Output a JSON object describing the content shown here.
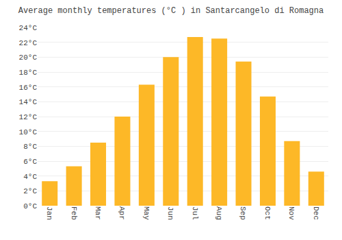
{
  "chart_data": {
    "type": "bar",
    "title": "Average monthly temperatures (°C ) in Santarcangelo di Romagna",
    "categories": [
      "Jan",
      "Feb",
      "Mar",
      "Apr",
      "May",
      "Jun",
      "Jul",
      "Aug",
      "Sep",
      "Oct",
      "Nov",
      "Dec"
    ],
    "values": [
      3.3,
      5.3,
      8.5,
      12.0,
      16.3,
      20.0,
      22.7,
      22.5,
      19.4,
      14.7,
      8.7,
      4.6
    ],
    "color": "#FDB827",
    "ylim": [
      0,
      24
    ],
    "yticks": [
      {
        "value": 0,
        "label": "0°C"
      },
      {
        "value": 2,
        "label": "2°C"
      },
      {
        "value": 4,
        "label": "4°C"
      },
      {
        "value": 6,
        "label": "6°C"
      },
      {
        "value": 8,
        "label": "8°C"
      },
      {
        "value": 10,
        "label": "10°C"
      },
      {
        "value": 12,
        "label": "12°C"
      },
      {
        "value": 14,
        "label": "14°C"
      },
      {
        "value": 16,
        "label": "16°C"
      },
      {
        "value": 18,
        "label": "18°C"
      },
      {
        "value": 20,
        "label": "20°C"
      },
      {
        "value": 22,
        "label": "22°C"
      },
      {
        "value": 24,
        "label": "24°C"
      }
    ],
    "grid": true
  }
}
